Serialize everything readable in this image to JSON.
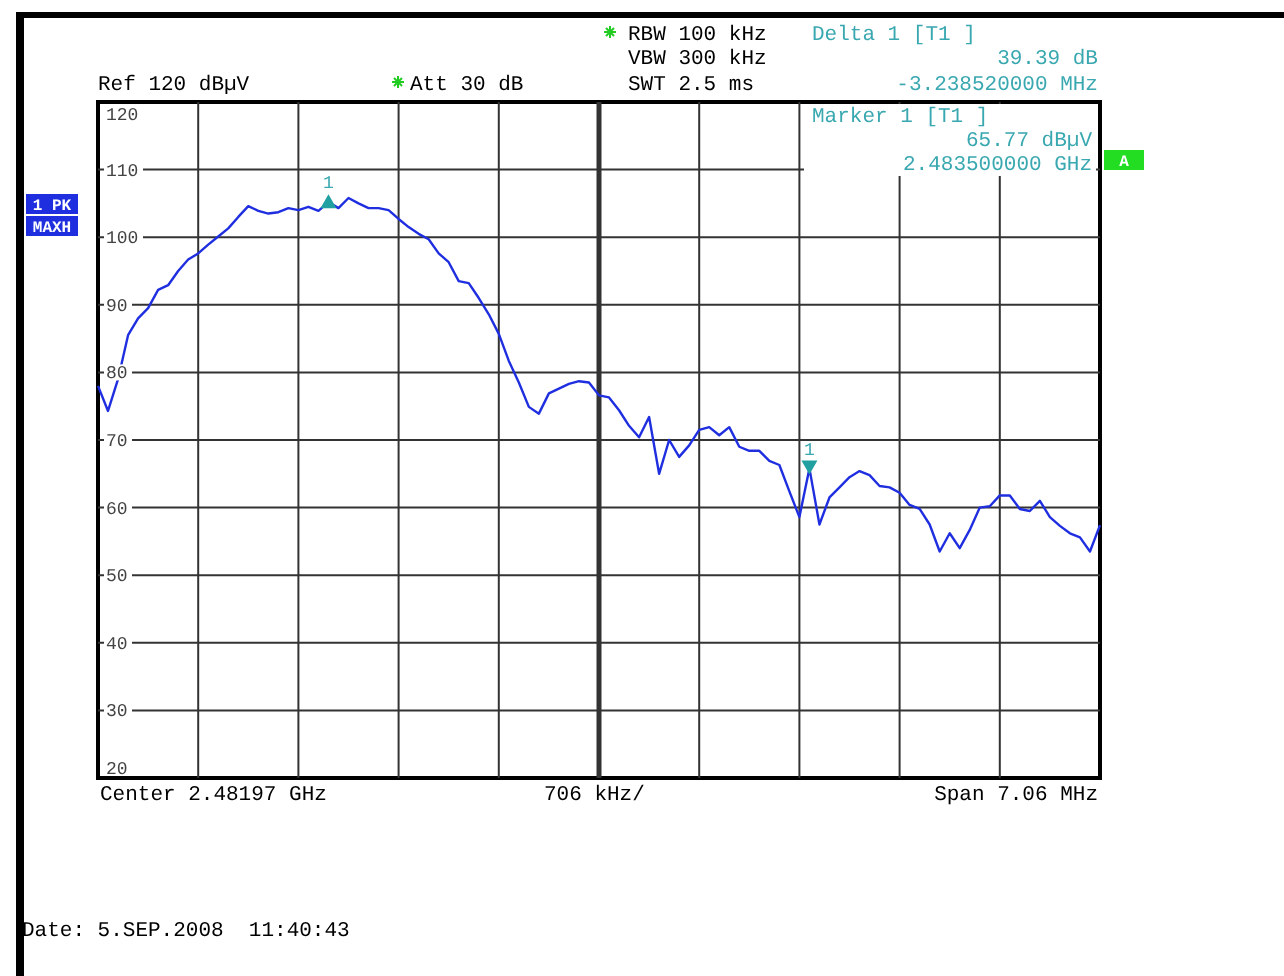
{
  "chart_data": {
    "type": "line",
    "categories": [
      null,
      null,
      null,
      null,
      null,
      null,
      null,
      null,
      null,
      null,
      null,
      null,
      null,
      null,
      null,
      null,
      null,
      null,
      null,
      null,
      null,
      null,
      null,
      null,
      null,
      null,
      null,
      null,
      null,
      null,
      null,
      null,
      null,
      null,
      null,
      null,
      null,
      null,
      null,
      null,
      null,
      null,
      null,
      null,
      null,
      null,
      null,
      null,
      null,
      null,
      null,
      null,
      null,
      null,
      null,
      null,
      null,
      null,
      null,
      null,
      null,
      null,
      null,
      null,
      null,
      null,
      null,
      null,
      null,
      null,
      null,
      null,
      null,
      null,
      null,
      null,
      null,
      null,
      null,
      null,
      null,
      null,
      null,
      null,
      null,
      null,
      null,
      null,
      null,
      null,
      null,
      null,
      null,
      null,
      null,
      null,
      null,
      null,
      null,
      null,
      null
    ],
    "series": [
      {
        "color": "#1f2fe0",
        "values": [
          78,
          74.3,
          79,
          85.5,
          88,
          89.5,
          92.2,
          92.9,
          95,
          96.7,
          97.6,
          98.9,
          100.1,
          101.3,
          103,
          104.6,
          103.9,
          103.5,
          103.7,
          104.3,
          104,
          104.5,
          103.9,
          105.2,
          104.3,
          105.8,
          105,
          104.3,
          104.3,
          104,
          102.7,
          101.5,
          100.5,
          99.7,
          97.6,
          96.3,
          93.5,
          93.2,
          91,
          88.6,
          85.7,
          81.7,
          78.5,
          74.9,
          73.9,
          76.9,
          77.6,
          78.3,
          78.7,
          78.5,
          76.6,
          76.3,
          74.4,
          72.1,
          70.4,
          73.4,
          65,
          70,
          67.5,
          69.2,
          71.5,
          71.9,
          70.7,
          71.9,
          69,
          68.4,
          68.4,
          66.9,
          66.3,
          62.4,
          58.6,
          65.8,
          57.5,
          61.5,
          63,
          64.5,
          65.4,
          64.8,
          63.2,
          63,
          62.2,
          60.4,
          59.8,
          57.5,
          53.5,
          56.2,
          54,
          56.7,
          60,
          60.2,
          61.8,
          61.8,
          59.8,
          59.5,
          61,
          58.6,
          57.3,
          56.2,
          55.6,
          53.5,
          57.4
        ]
      }
    ],
    "ylim": [
      20,
      120
    ],
    "yticks": [
      20,
      30,
      40,
      50,
      60,
      70,
      80,
      90,
      100,
      110,
      120
    ],
    "grid": true,
    "marker": "none",
    "line_style": "solid",
    "annotations": [
      "RBW 100 kHz",
      "VBW 300 kHz",
      "SWT 2.5 ms",
      "Ref 120 dBµV",
      "Att 30 dB",
      "Delta 1 [T1 ]",
      "39.39 dB",
      "-3.238520000 MHz",
      "Marker 1 [T1 ]",
      "65.77 dBµV",
      "2.483500000 GHz",
      "Center 2.48197 GHz",
      "706 kHz/",
      "Span 7.06 MHz",
      "Date: 5.SEP.2008  11:40:43",
      "1 PK",
      "MAXH",
      "A",
      {
        "text": "1",
        "y": 105.16
      },
      {
        "text": "1",
        "y": 65.77
      }
    ]
  }
}
